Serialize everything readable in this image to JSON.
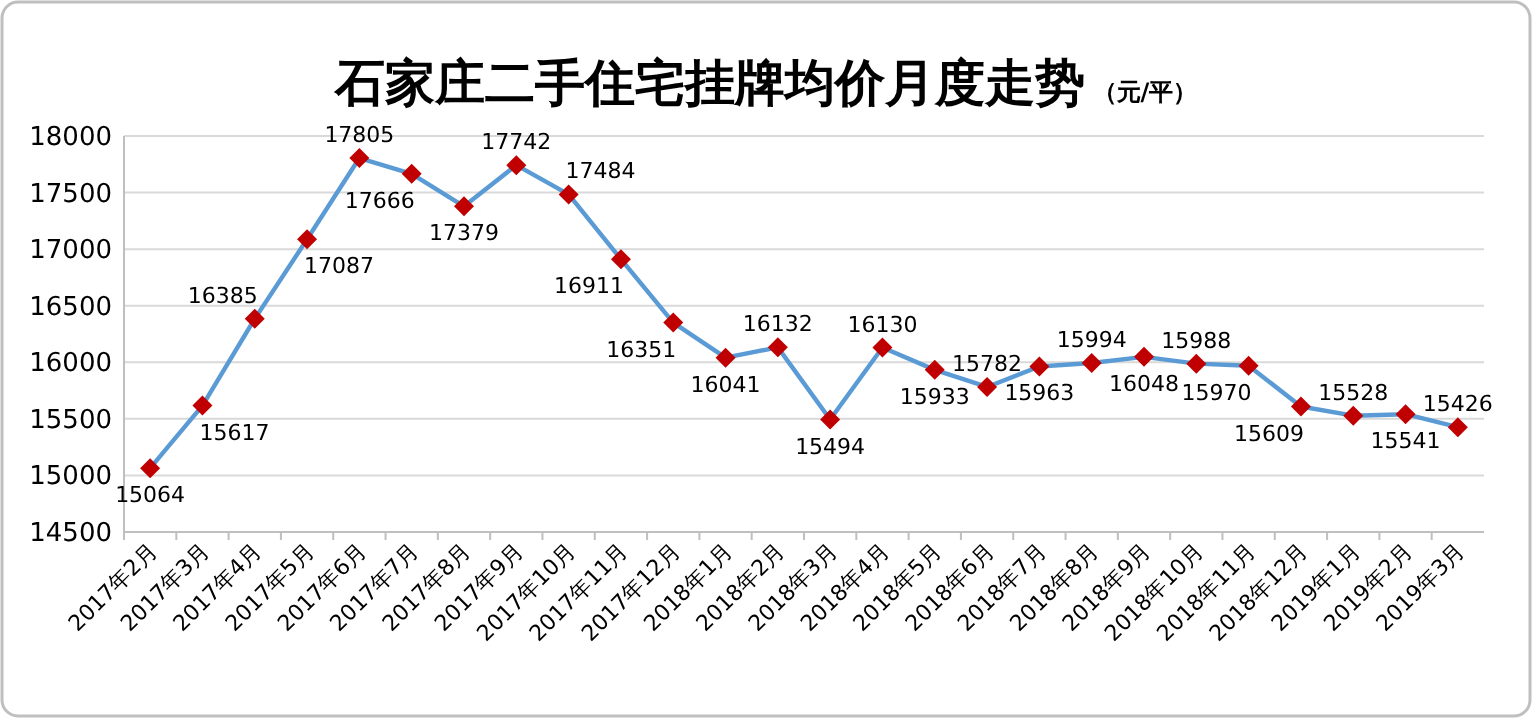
{
  "chart_data": {
    "type": "line",
    "title": "石家庄二手住宅挂牌均价月度走势",
    "subtitle": "（元/平）",
    "categories": [
      "2017年2月",
      "2017年3月",
      "2017年4月",
      "2017年5月",
      "2017年6月",
      "2017年7月",
      "2017年8月",
      "2017年9月",
      "2017年10月",
      "2017年11月",
      "2017年12月",
      "2018年1月",
      "2018年2月",
      "2018年3月",
      "2018年4月",
      "2018年5月",
      "2018年6月",
      "2018年7月",
      "2018年8月",
      "2018年9月",
      "2018年10月",
      "2018年11月",
      "2018年12月",
      "2019年1月",
      "2019年2月",
      "2019年3月"
    ],
    "series": [
      {
        "color": "#5b9bd5",
        "colors": [
          "#c00000",
          "#c00000",
          "#c00000",
          "#c00000",
          "#c00000",
          "#c00000",
          "#c00000",
          "#c00000",
          "#c00000",
          "#c00000",
          "#c00000",
          "#c00000",
          "#c00000",
          "#c00000",
          "#c00000",
          "#c00000",
          "#c00000",
          "#c00000",
          "#c00000",
          "#c00000",
          "#c00000",
          "#c00000",
          "#c00000",
          "#c00000",
          "#c00000",
          "#c00000"
        ],
        "values": [
          15064,
          15617,
          16385,
          17087,
          17805,
          17666,
          17379,
          17742,
          17484,
          16911,
          16351,
          16041,
          16132,
          15494,
          16130,
          15933,
          15782,
          15963,
          15994,
          16048,
          15988,
          15970,
          15609,
          15528,
          15541,
          15426
        ]
      }
    ],
    "ylim": [
      14500,
      18000
    ],
    "yticks": [
      14500,
      15000,
      15500,
      16000,
      16500,
      17000,
      17500,
      18000
    ],
    "grid": "y",
    "marker": "diamond",
    "data_labels": true
  }
}
